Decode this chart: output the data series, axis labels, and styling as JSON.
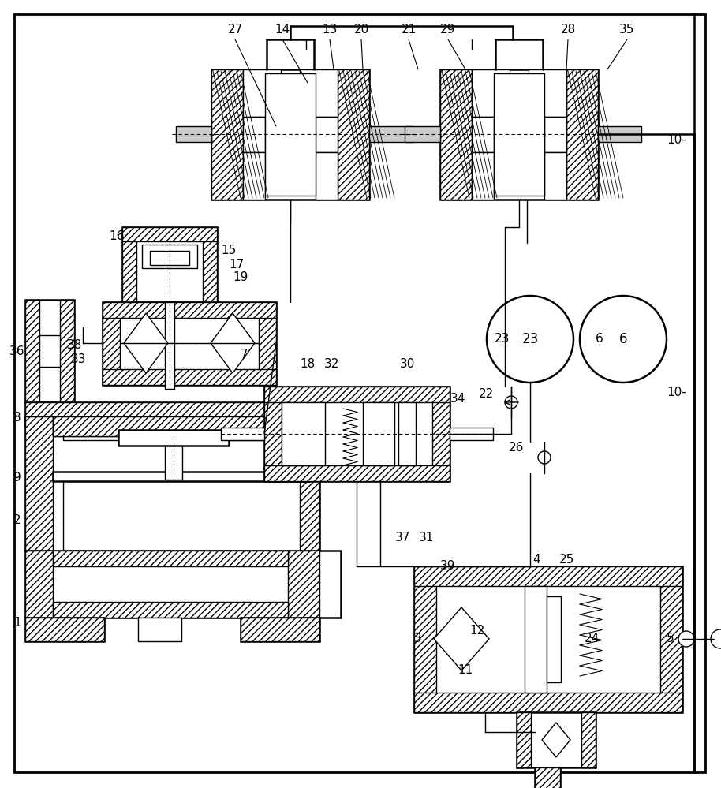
{
  "fig_width": 9.14,
  "fig_height": 9.99,
  "line_color": "#000000",
  "lw": 1.0,
  "lw2": 1.8
}
